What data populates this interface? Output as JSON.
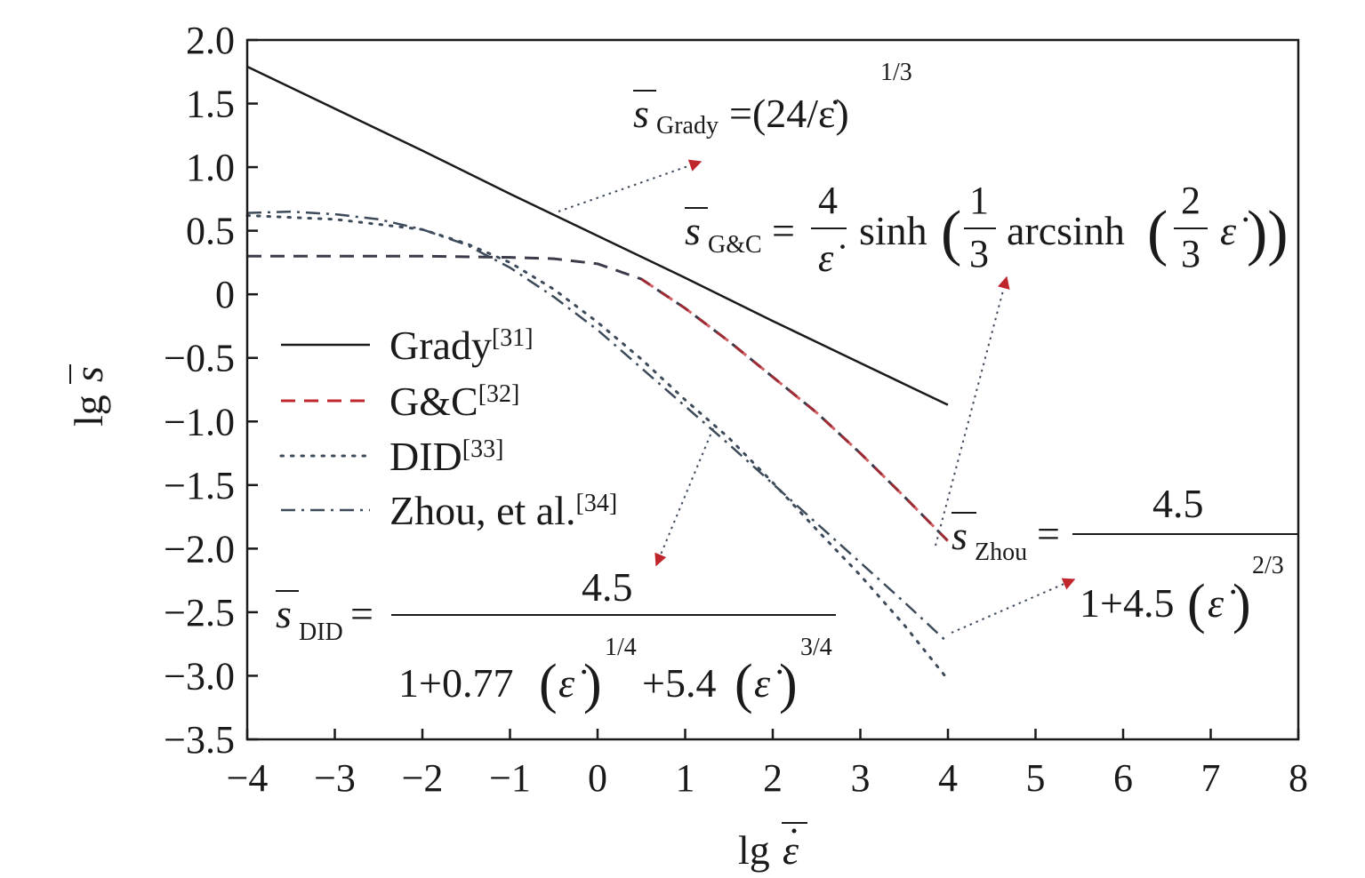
{
  "chart_data": {
    "type": "line",
    "xlabel": "lg ε̇",
    "ylabel": "lg s",
    "xlim": [
      -4,
      8
    ],
    "ylim": [
      -3.5,
      2.0
    ],
    "x_ticks": [
      "−4",
      "−3",
      "−2",
      "−1",
      "0",
      "1",
      "2",
      "3",
      "4",
      "5",
      "6",
      "7",
      "8"
    ],
    "y_ticks": [
      "2.0",
      "1.5",
      "1.0",
      "0.5",
      "0",
      "−0.5",
      "−1.0",
      "−1.5",
      "−2.0",
      "−2.5",
      "−3.0",
      "−3.5"
    ],
    "grid": false,
    "legend_position": "center-left",
    "series": [
      {
        "name": "Grady",
        "ref": "[31]",
        "style": "solid",
        "color": "#1a1a1a",
        "x": [
          -4,
          -3,
          -2,
          -1,
          0,
          1,
          2,
          3,
          4
        ],
        "y": [
          1.79,
          1.46,
          1.13,
          0.79,
          0.46,
          0.13,
          -0.21,
          -0.54,
          -0.87
        ]
      },
      {
        "name": "G&C",
        "ref": "[32]",
        "style": "dashed",
        "color": "#3b3b4a",
        "accent_color": "#c0272d",
        "x": [
          -4,
          -3,
          -2,
          -1,
          -0.5,
          0,
          0.5,
          1,
          1.5,
          2,
          2.5,
          3,
          3.5,
          4
        ],
        "y": [
          0.3,
          0.3,
          0.3,
          0.29,
          0.28,
          0.24,
          0.12,
          -0.11,
          -0.37,
          -0.65,
          -0.93,
          -1.25,
          -1.59,
          -1.94
        ]
      },
      {
        "name": "DID",
        "ref": "[33]",
        "style": "dotted",
        "color": "#3c4a5a",
        "x": [
          -4,
          -3,
          -2,
          -1.5,
          -1,
          -0.5,
          0,
          0.5,
          1,
          1.5,
          2,
          2.5,
          3,
          3.5,
          4
        ],
        "y": [
          0.62,
          0.59,
          0.51,
          0.4,
          0.25,
          0.04,
          -0.22,
          -0.51,
          -0.83,
          -1.13,
          -1.48,
          -1.85,
          -2.21,
          -2.6,
          -3.03
        ]
      },
      {
        "name": "Zhou, et al.",
        "ref": "[34]",
        "style": "dashdot",
        "color": "#3c4a5a",
        "x": [
          -4,
          -3.5,
          -3,
          -2.5,
          -2,
          -1.5,
          -1,
          -0.5,
          0,
          0.5,
          1,
          1.5,
          2,
          2.5,
          3,
          3.5,
          4
        ],
        "y": [
          0.64,
          0.65,
          0.63,
          0.59,
          0.51,
          0.39,
          0.21,
          -0.02,
          -0.28,
          -0.58,
          -0.88,
          -1.18,
          -1.49,
          -1.8,
          -2.11,
          -2.42,
          -2.74
        ]
      }
    ],
    "annotations": {
      "grady": {
        "symbol": "s",
        "sub": "Grady",
        "body": "=(24/ε̇)",
        "exp": "1/3"
      },
      "gc": {
        "symbol": "s",
        "sub": "G&C",
        "eq": "=",
        "num": "4",
        "den": "ε̇",
        "sinh": "sinh",
        "third_num": "1",
        "third_den": "3",
        "arcsinh": "arcsinh",
        "two_num": "2",
        "two_den": "3",
        "eps": "ε̇"
      },
      "zhou": {
        "symbol": "s",
        "sub": "Zhou",
        "eq": "=",
        "num": "4.5",
        "den_prefix": "1+4.5",
        "eps": "ε̇",
        "exp": "2/3"
      },
      "did": {
        "symbol": "s",
        "sub": "DID",
        "eq": "=",
        "num": "4.5",
        "den_a": "1+0.77",
        "exp_a": "1/4",
        "den_b": "+5.4",
        "exp_b": "3/4",
        "eps": "ε̇"
      }
    },
    "arrow_color": "#c0272d"
  }
}
